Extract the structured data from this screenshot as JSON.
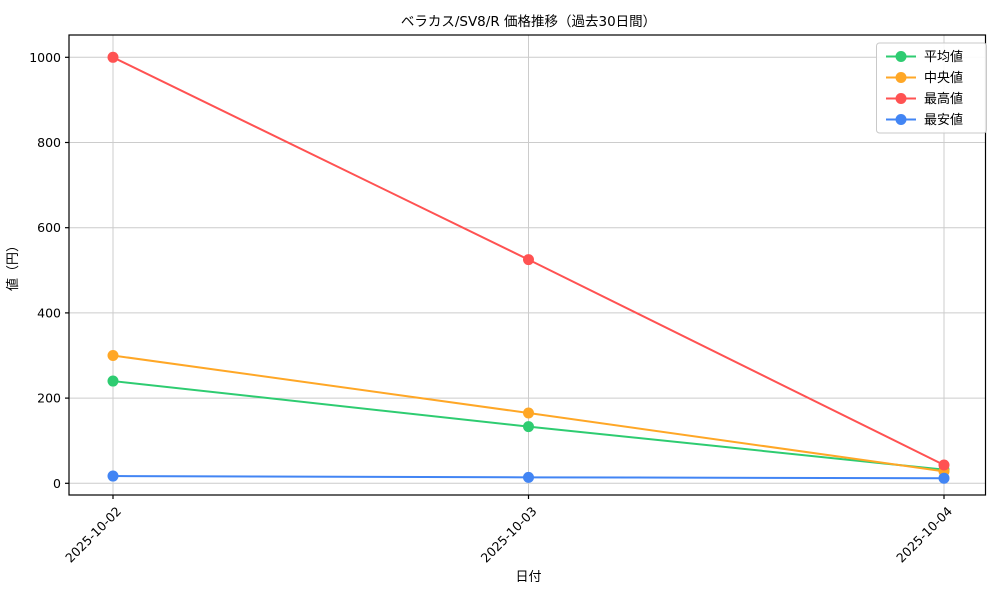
{
  "chart_data": {
    "type": "line",
    "title": "ベラカス/SV8/R 価格推移（過去30日間）",
    "xlabel": "日付",
    "ylabel": "値（円）",
    "categories": [
      "2025-10-02",
      "2025-10-03",
      "2025-10-04"
    ],
    "series": [
      {
        "name": "平均値",
        "color": "#2ecc71",
        "values": [
          240,
          133,
          32
        ]
      },
      {
        "name": "中央値",
        "color": "#ffa726",
        "values": [
          300,
          165,
          28
        ]
      },
      {
        "name": "最高値",
        "color": "#ff5252",
        "values": [
          1000,
          525,
          43
        ]
      },
      {
        "name": "最安値",
        "color": "#4285f4",
        "values": [
          17,
          14,
          12
        ]
      }
    ],
    "ylim": [
      0,
      1000
    ],
    "yticks": [
      0,
      200,
      400,
      600,
      800,
      1000
    ],
    "grid": true,
    "grid_color": "#cccccc",
    "legend_position": "upper right",
    "background_color": "#ffffff"
  }
}
